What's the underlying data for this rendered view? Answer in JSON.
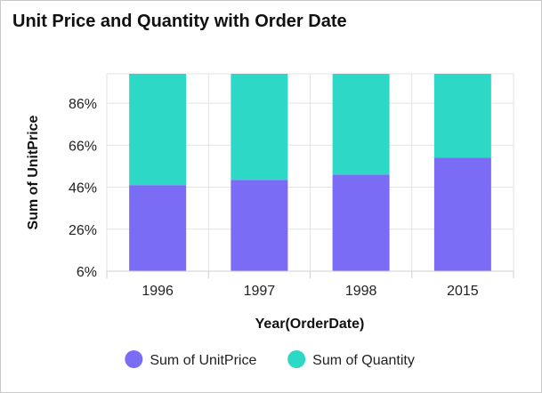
{
  "chart_data": {
    "type": "bar",
    "stacked": true,
    "normalized": true,
    "title": "Unit Price and Quantity with Order Date",
    "xlabel": "Year(OrderDate)",
    "ylabel": "Sum of UnitPrice",
    "categories": [
      "1996",
      "1997",
      "1998",
      "2015"
    ],
    "series": [
      {
        "name": "Sum of UnitPrice",
        "color": "#7b6cf6",
        "values": [
          47,
          49.5,
          52,
          60
        ]
      },
      {
        "name": "Sum of Quantity",
        "color": "#2ed8c6",
        "values": [
          53,
          50.5,
          48,
          40
        ]
      }
    ],
    "ylim": [
      6,
      100
    ],
    "yticks": [
      6,
      26,
      46,
      66,
      86
    ],
    "ytick_labels": [
      "6%",
      "26%",
      "46%",
      "66%",
      "86%"
    ],
    "grid": true,
    "legend": "bottom"
  }
}
